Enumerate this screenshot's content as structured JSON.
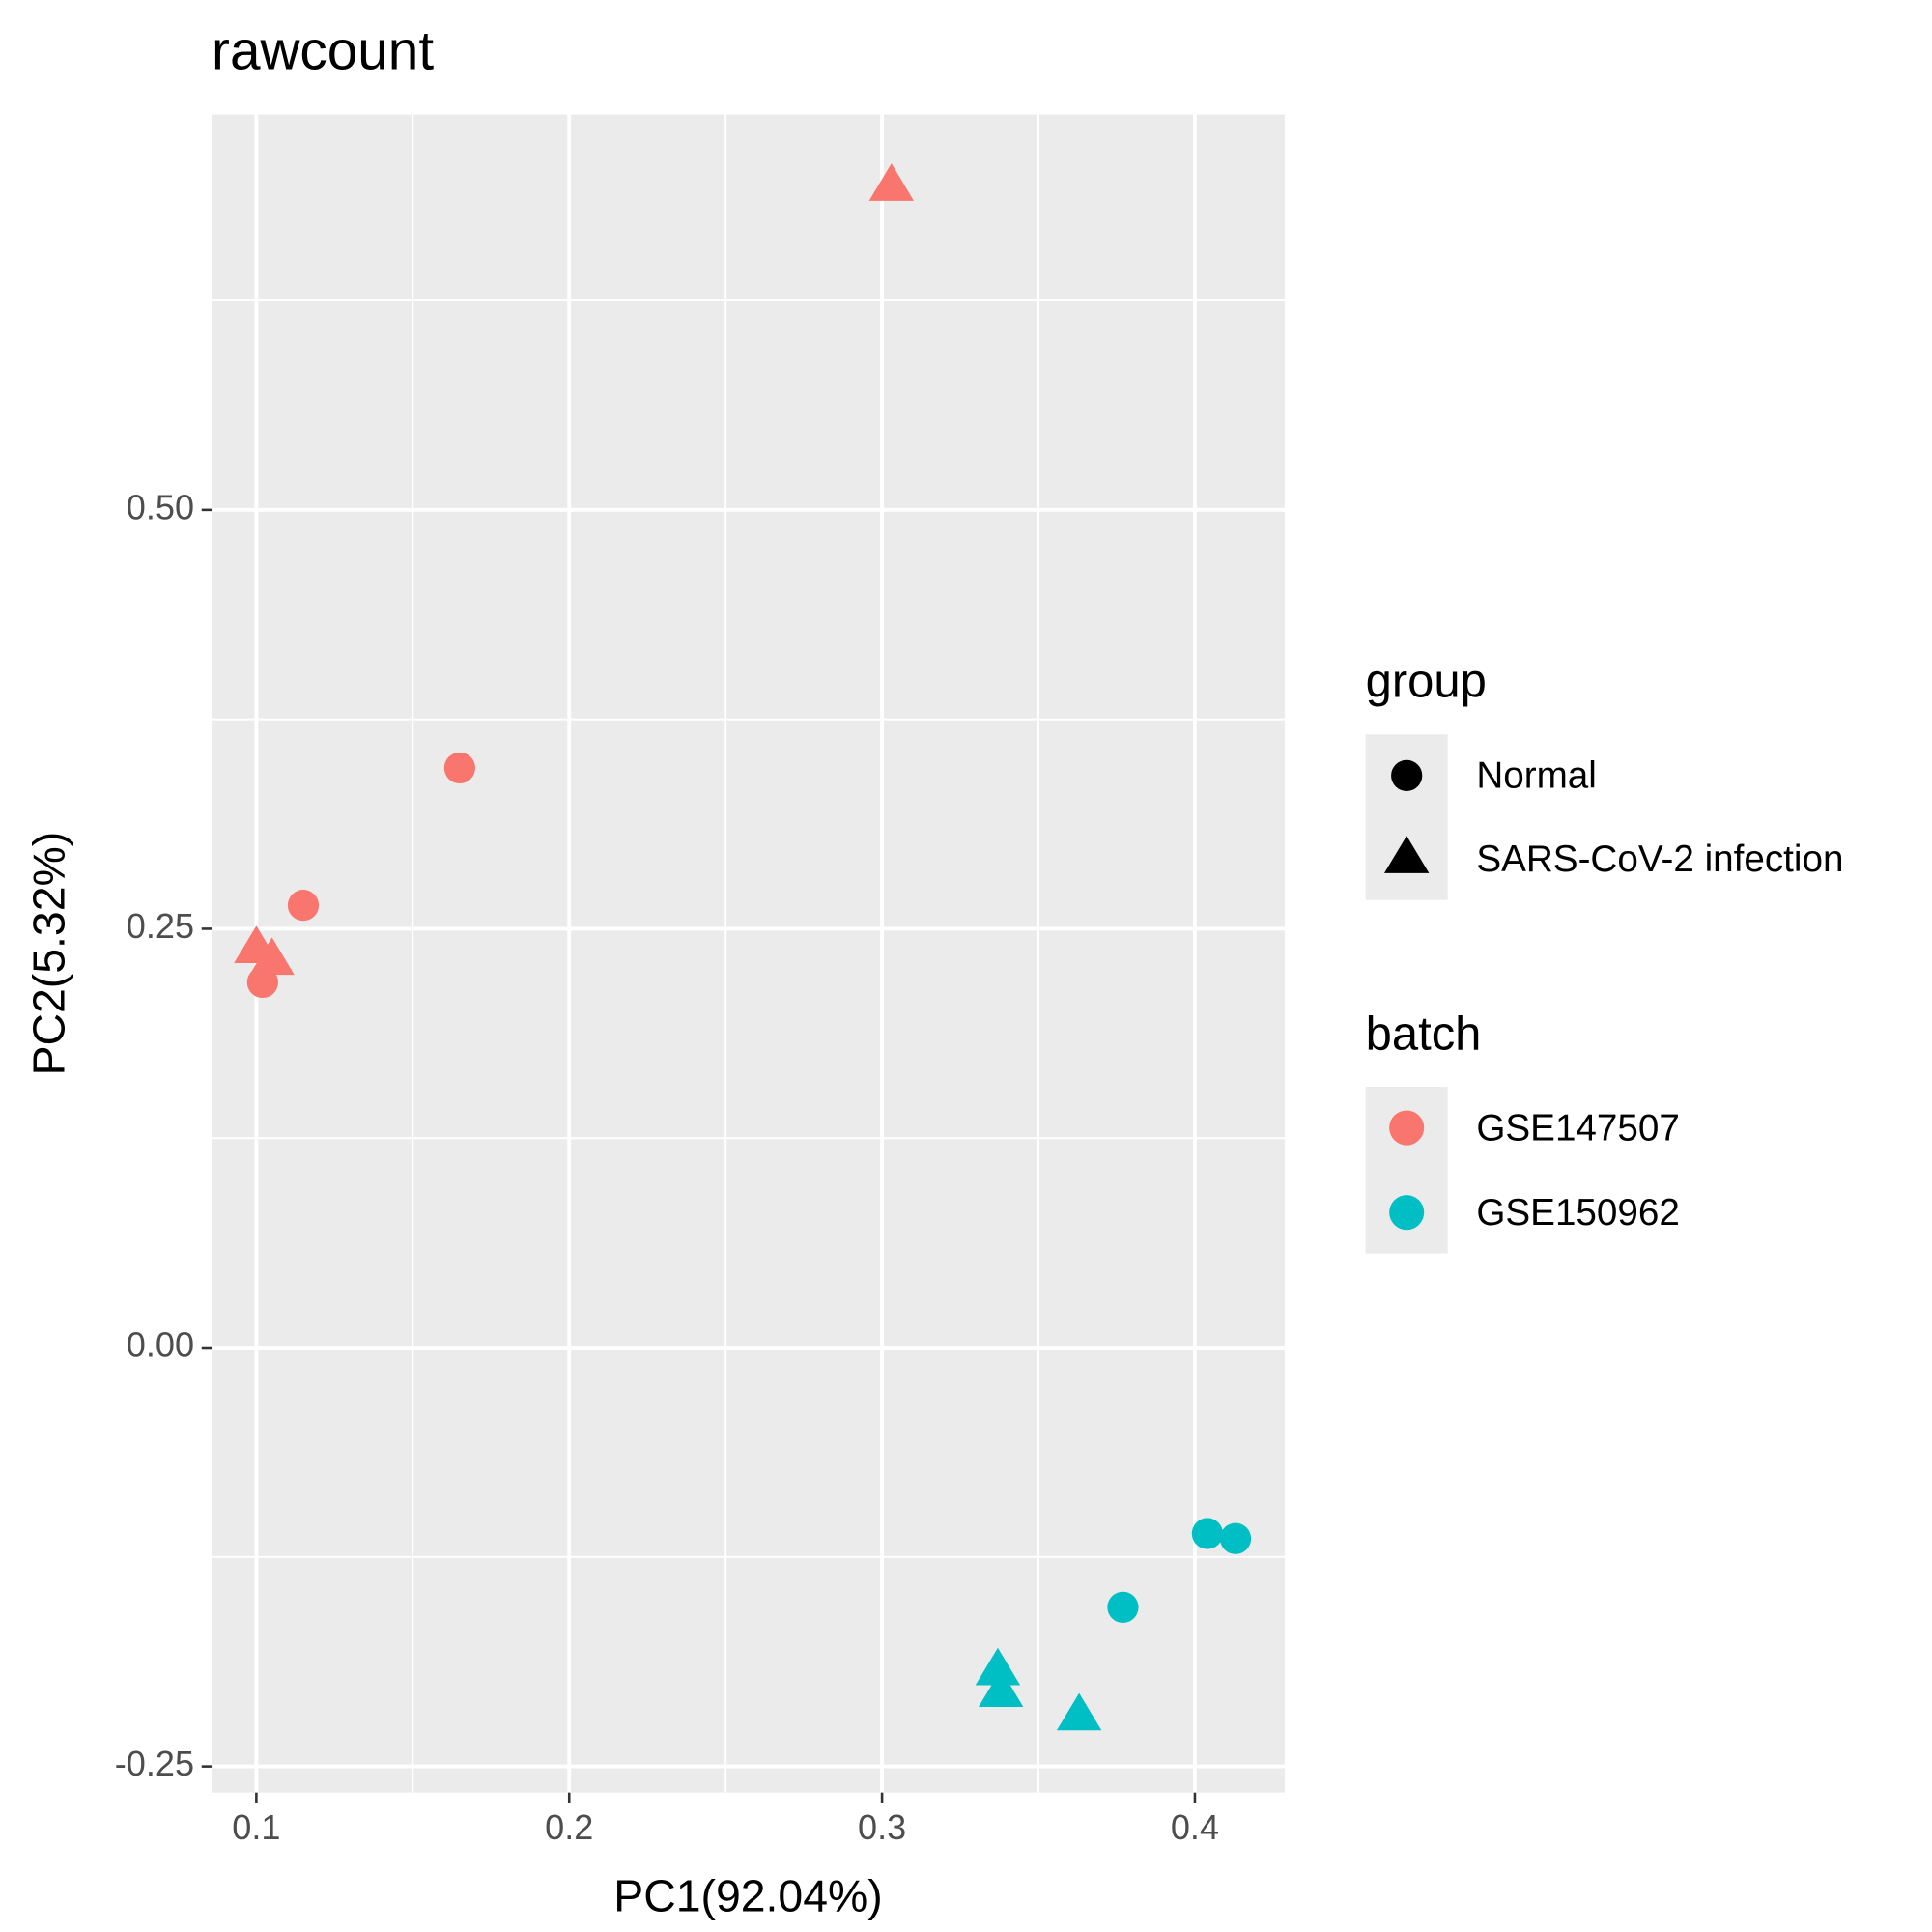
{
  "chart_data": {
    "type": "scatter",
    "title": "rawcount",
    "xlabel": "PC1(92.04%)",
    "ylabel": "PC2(5.32%)",
    "xlim": [
      0.0857,
      0.4287
    ],
    "ylim": [
      -0.2656,
      0.736
    ],
    "xticks": [
      0.1,
      0.2,
      0.3,
      0.4
    ],
    "yticks": [
      {
        "value": 0.5,
        "label": "0.50"
      },
      0.25,
      {
        "value": 0,
        "label": "0.00"
      },
      -0.25
    ],
    "xminor": [
      0.15,
      0.25,
      0.35
    ],
    "yminor": [
      0.625,
      0.375,
      0.125,
      -0.125
    ],
    "grid": true,
    "group_legend": {
      "title": "group",
      "items": [
        "Normal",
        "SARS-CoV-2 infection"
      ],
      "shapes": [
        "circle",
        "triangle"
      ]
    },
    "batch_legend": {
      "title": "batch"
    },
    "series": [
      {
        "name": "GSE147507",
        "color": "#f8766d",
        "x": [
          0.303,
          0.165,
          0.115,
          0.1,
          0.105,
          0.102
        ],
        "y": [
          0.693,
          0.346,
          0.264,
          0.238,
          0.231,
          0.218
        ],
        "group": [
          "SARS-CoV-2 infection",
          "Normal",
          "Normal",
          "SARS-CoV-2 infection",
          "SARS-CoV-2 infection",
          "Normal"
        ]
      },
      {
        "name": "GSE150962",
        "color": "#00bfc4",
        "x": [
          0.404,
          0.413,
          0.377,
          0.337,
          0.338,
          0.363
        ],
        "y": [
          -0.111,
          -0.114,
          -0.155,
          -0.193,
          -0.206,
          -0.22
        ],
        "group": [
          "Normal",
          "Normal",
          "Normal",
          "SARS-CoV-2 infection",
          "SARS-CoV-2 infection",
          "SARS-CoV-2 infection"
        ]
      }
    ]
  }
}
